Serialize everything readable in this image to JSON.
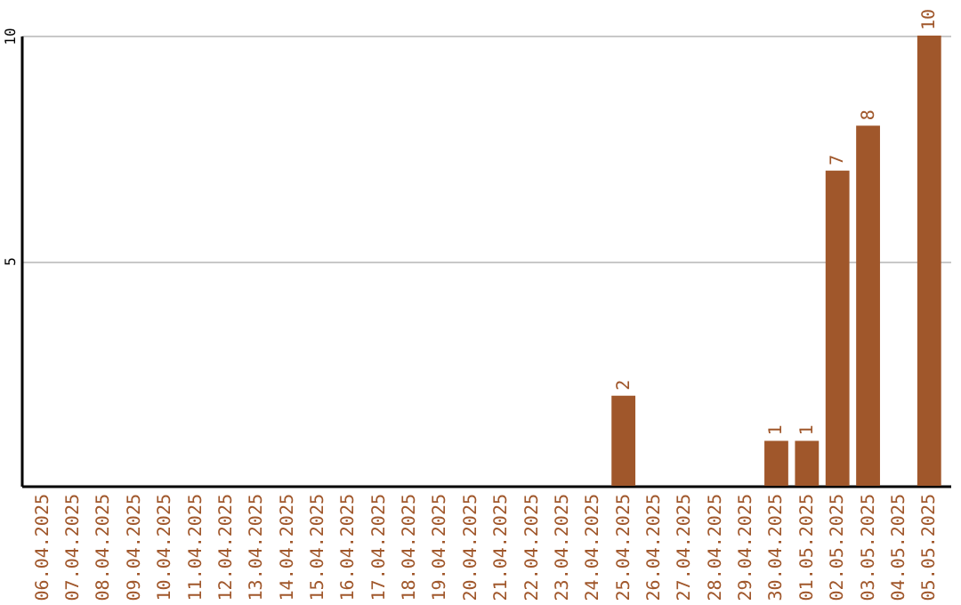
{
  "chart_data": {
    "type": "bar",
    "categories": [
      "06.04.2025",
      "07.04.2025",
      "08.04.2025",
      "09.04.2025",
      "10.04.2025",
      "11.04.2025",
      "12.04.2025",
      "13.04.2025",
      "14.04.2025",
      "15.04.2025",
      "16.04.2025",
      "17.04.2025",
      "18.04.2025",
      "19.04.2025",
      "20.04.2025",
      "21.04.2025",
      "22.04.2025",
      "23.04.2025",
      "24.04.2025",
      "25.04.2025",
      "26.04.2025",
      "27.04.2025",
      "28.04.2025",
      "29.04.2025",
      "30.04.2025",
      "01.05.2025",
      "02.05.2025",
      "03.05.2025",
      "04.05.2025",
      "05.05.2025"
    ],
    "values": [
      0,
      0,
      0,
      0,
      0,
      0,
      0,
      0,
      0,
      0,
      0,
      0,
      0,
      0,
      0,
      0,
      0,
      0,
      0,
      2,
      0,
      0,
      0,
      0,
      1,
      1,
      7,
      8,
      0,
      10
    ],
    "value_labels": [
      null,
      null,
      null,
      null,
      null,
      null,
      null,
      null,
      null,
      null,
      null,
      null,
      null,
      null,
      null,
      null,
      null,
      null,
      null,
      "2",
      null,
      null,
      null,
      null,
      "1",
      "1",
      "7",
      "8",
      null,
      "10"
    ],
    "color": "#a0572b",
    "ylim": [
      0,
      10
    ],
    "yticks": [
      5,
      10
    ],
    "grid": "y"
  }
}
